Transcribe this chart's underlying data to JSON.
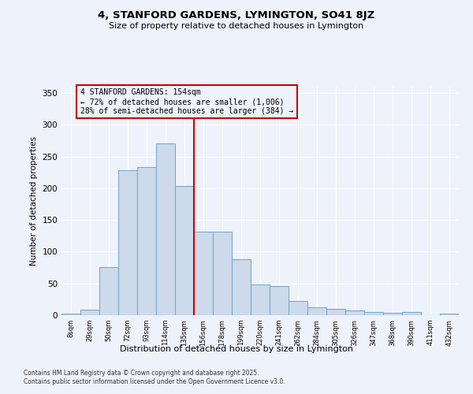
{
  "title": "4, STANFORD GARDENS, LYMINGTON, SO41 8JZ",
  "subtitle": "Size of property relative to detached houses in Lymington",
  "xlabel": "Distribution of detached houses by size in Lymington",
  "ylabel": "Number of detached properties",
  "categories": [
    "8sqm",
    "29sqm",
    "50sqm",
    "72sqm",
    "93sqm",
    "114sqm",
    "135sqm",
    "156sqm",
    "178sqm",
    "199sqm",
    "220sqm",
    "241sqm",
    "262sqm",
    "284sqm",
    "305sqm",
    "326sqm",
    "347sqm",
    "368sqm",
    "390sqm",
    "411sqm",
    "432sqm"
  ],
  "values": [
    3,
    9,
    76,
    228,
    234,
    271,
    203,
    132,
    132,
    88,
    48,
    46,
    22,
    12,
    10,
    8,
    5,
    4,
    5,
    0,
    3
  ],
  "bar_color": "#ccdaeb",
  "bar_edge_color": "#7aaaca",
  "vline_color": "#cc0000",
  "annotation_title": "4 STANFORD GARDENS: 154sqm",
  "annotation_line1": "← 72% of detached houses are smaller (1,006)",
  "annotation_line2": "28% of semi-detached houses are larger (384) →",
  "annotation_box_color": "#cc0000",
  "ylim": [
    0,
    360
  ],
  "yticks": [
    0,
    50,
    100,
    150,
    200,
    250,
    300,
    350
  ],
  "footnote1": "Contains HM Land Registry data © Crown copyright and database right 2025.",
  "footnote2": "Contains public sector information licensed under the Open Government Licence v3.0.",
  "background_color": "#eef2fb",
  "grid_color": "#ffffff"
}
